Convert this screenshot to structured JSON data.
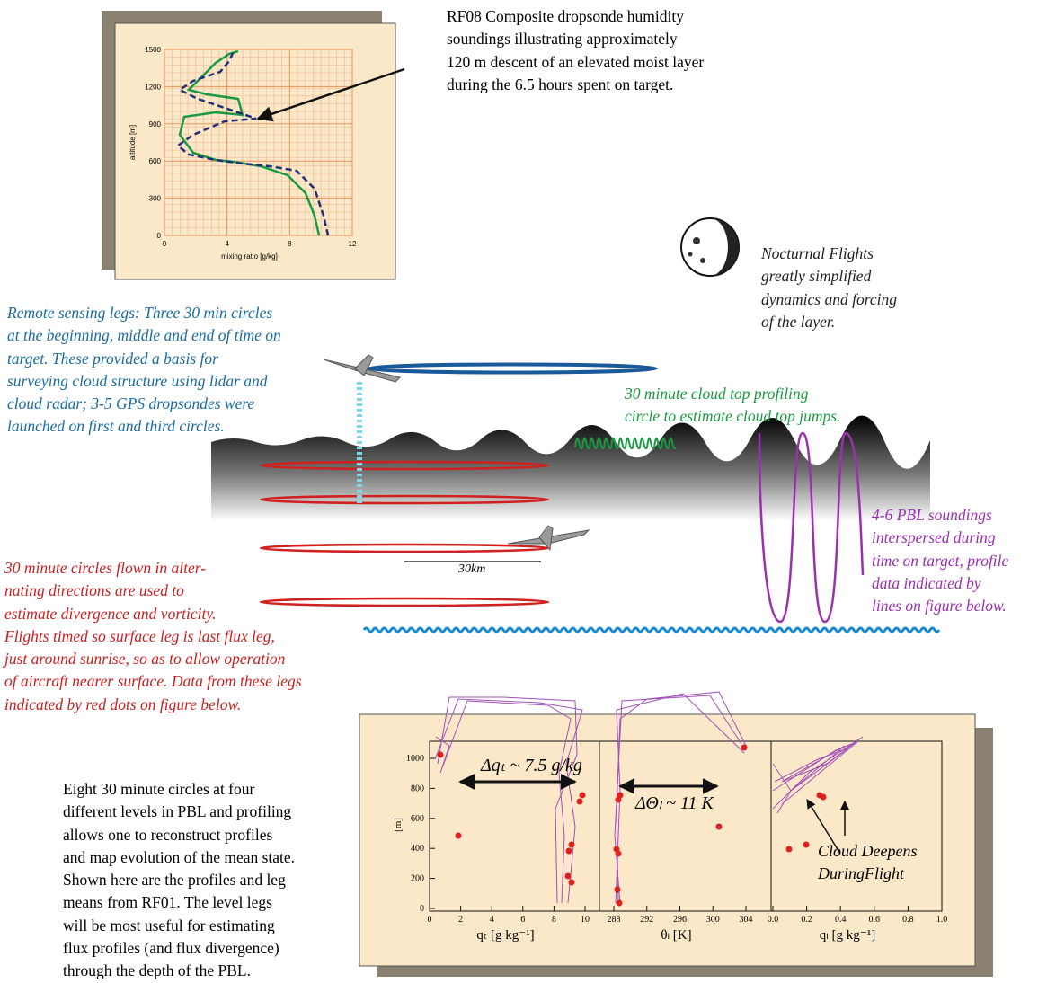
{
  "sounding_inset": {
    "y_label": "altitude  [m]",
    "x_label": "mixing ratio  [g/kg]",
    "xticks": [
      0,
      4,
      8,
      12
    ],
    "yticks": [
      0,
      300,
      600,
      900,
      1200,
      1500
    ]
  },
  "sounding_caption": {
    "lines": [
      "RF08 Composite dropsonde humidity",
      "soundings illustrating approximately",
      "120 m descent of an elevated moist layer",
      "during the 6.5 hours spent on target."
    ]
  },
  "nocturnal_note": {
    "lines": [
      "Nocturnal Flights",
      "greatly simplified",
      "dynamics and forcing",
      "of the layer."
    ]
  },
  "remote_sensing_note": {
    "lines": [
      "Remote sensing legs: Three 30 min circles",
      "at the beginning, middle and end of time on",
      "target.  These provided a basis for",
      "surveying cloud structure using lidar and",
      "cloud radar; 3-5 GPS dropsondes were",
      "launched on first and third circles."
    ]
  },
  "cloud_top_note": {
    "lines": [
      "30 minute cloud top profiling",
      "circle to estimate cloud top jumps."
    ]
  },
  "pbl_note": {
    "lines": [
      "4-6 PBL soundings",
      "interspersed during",
      "time on target, profile",
      "data indicated by",
      "lines on figure below."
    ]
  },
  "circles_note": {
    "lines": [
      "30 minute circles flown in alter-",
      "nating directions are used to",
      "estimate divergence and vorticity.",
      "Flights timed so surface leg is last flux leg,",
      "just around sunrise, so as to  allow operation",
      "of aircraft nearer surface.  Data from these legs",
      "indicated by red dots on figure below."
    ]
  },
  "scale_label": "30km",
  "profile_panel": {
    "y_label": "[m]",
    "yticks": [
      0,
      200,
      400,
      600,
      800,
      1000
    ],
    "panels": [
      {
        "x_label": "qₜ  [g  kg⁻¹]",
        "xticks": [
          0,
          2,
          4,
          6,
          8,
          10
        ],
        "annotation": "Δqₜ ~ 7.5 g/kg"
      },
      {
        "x_label": "θₗ [K]",
        "xticks": [
          288,
          292,
          296,
          300,
          304
        ],
        "annotation": "ΔΘₗ ~ 11 K"
      },
      {
        "x_label": "qₗ  [g  kg⁻¹]",
        "xticks": [
          {
            "value": 0,
            "label": "0.0"
          },
          0.2,
          0.4,
          0.6,
          0.8,
          {
            "value": 1,
            "label": "1.0"
          }
        ],
        "annotation": "Cloud Deepens",
        "annotation2": "DuringFlight"
      }
    ]
  },
  "description": {
    "lines": [
      "Eight 30 minute circles at four",
      "different levels in PBL and profiling",
      "allows one to reconstruct profiles",
      "and map evolution of the mean state.",
      "Shown here are the profiles and leg",
      "means from RF01.  The level legs",
      "will be most useful for estimating",
      "flux profiles (and flux divergence)",
      "through the depth of the PBL."
    ]
  }
}
